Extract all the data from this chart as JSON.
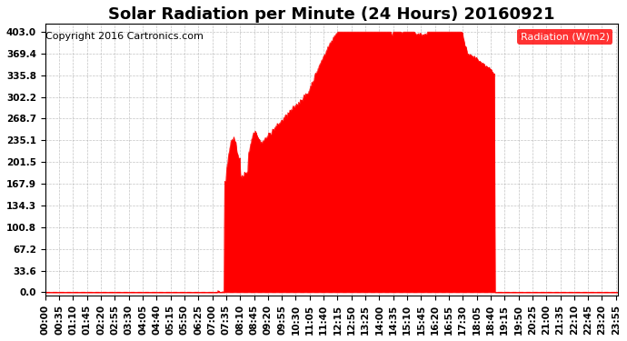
{
  "title": "Solar Radiation per Minute (24 Hours) 20160921",
  "copyright_text": "Copyright 2016 Cartronics.com",
  "legend_label": "Radiation (W/m2)",
  "yticks": [
    0.0,
    33.6,
    67.2,
    100.8,
    134.3,
    167.9,
    201.5,
    235.1,
    268.7,
    302.2,
    335.8,
    369.4,
    403.0
  ],
  "ylim": [
    -5,
    415
  ],
  "fill_color": "#FF0000",
  "line_color": "#FF0000",
  "dashed_zero_color": "#FF0000",
  "grid_color": "#AAAAAA",
  "background_color": "#FFFFFF",
  "legend_bg": "#FF0000",
  "legend_text_color": "#FFFFFF",
  "title_fontsize": 13,
  "copyright_fontsize": 8,
  "tick_fontsize": 7.5
}
